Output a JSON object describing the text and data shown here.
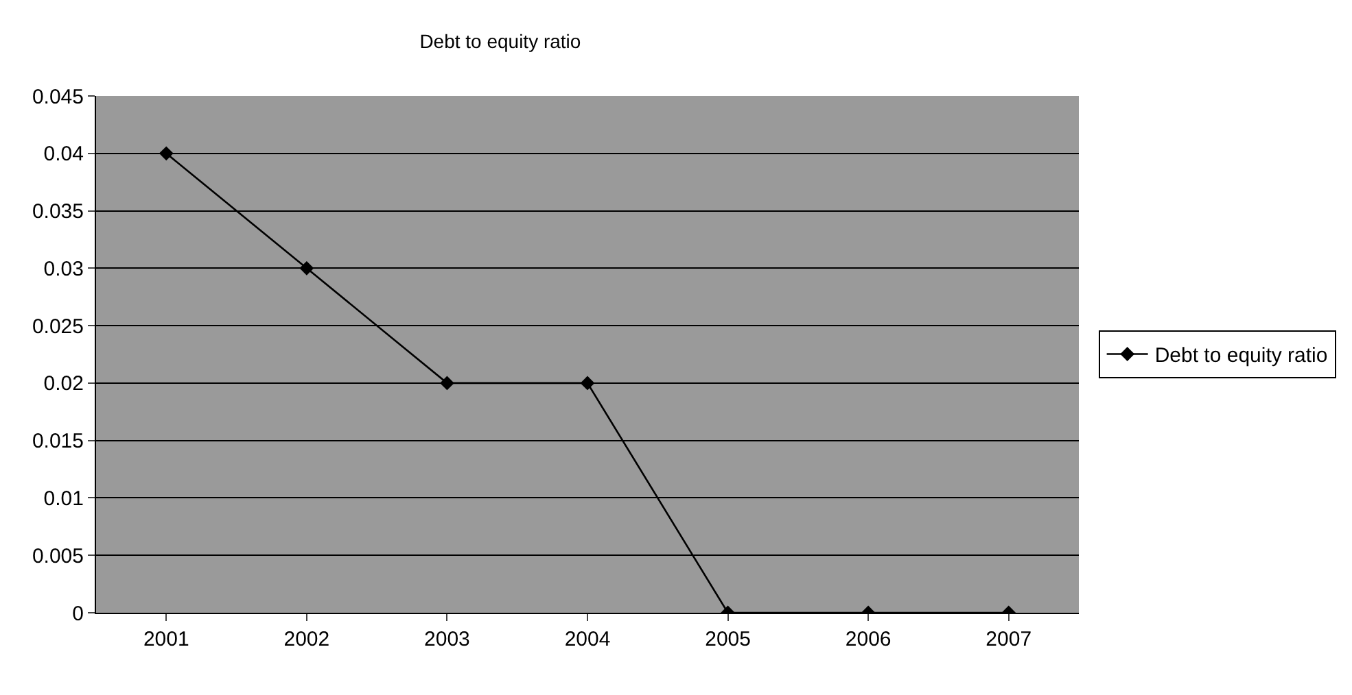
{
  "chart_data": {
    "type": "line",
    "title": "Debt to equity ratio",
    "categories": [
      "2001",
      "2002",
      "2003",
      "2004",
      "2005",
      "2006",
      "2007"
    ],
    "series": [
      {
        "name": "Debt to equity ratio",
        "color": "#000000",
        "values": [
          0.04,
          0.03,
          0.02,
          0.02,
          0,
          0,
          0
        ]
      }
    ],
    "ylim": [
      0,
      0.045
    ],
    "yticks": [
      0,
      0.005,
      0.01,
      0.015,
      0.02,
      0.025,
      0.03,
      0.035,
      0.04,
      0.045
    ],
    "grid": "y",
    "legend": "right",
    "marker": "diamond",
    "line_style": "solid"
  }
}
